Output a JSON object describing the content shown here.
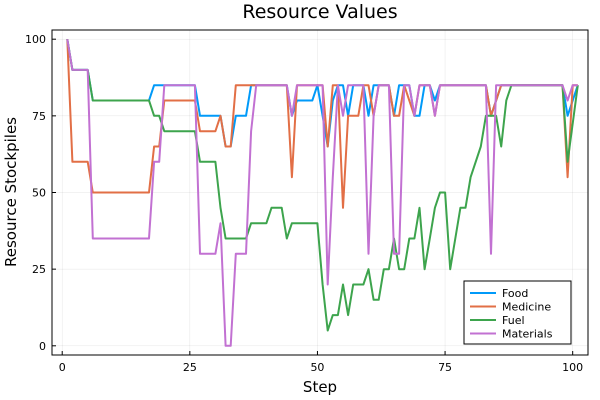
{
  "chart_data": {
    "type": "line",
    "title": "Resource Values",
    "xlabel": "Step",
    "ylabel": "Resource Stockpiles",
    "xlim": [
      -2,
      103
    ],
    "ylim": [
      -3,
      103
    ],
    "xticks": [
      0,
      25,
      50,
      75,
      100
    ],
    "yticks": [
      0,
      25,
      50,
      75,
      100
    ],
    "grid": true,
    "legend_position": "bottom-right",
    "series": [
      {
        "name": "Food",
        "color": "#009af9",
        "points": [
          [
            1,
            100
          ],
          [
            2,
            90
          ],
          [
            5,
            90
          ],
          [
            6,
            80
          ],
          [
            17,
            80
          ],
          [
            18,
            85
          ],
          [
            26,
            85
          ],
          [
            27,
            75
          ],
          [
            31,
            75
          ],
          [
            32,
            65
          ],
          [
            33,
            65
          ],
          [
            34,
            75
          ],
          [
            36,
            75
          ],
          [
            37,
            85
          ],
          [
            44,
            85
          ],
          [
            45,
            75
          ],
          [
            46,
            80
          ],
          [
            49,
            80
          ],
          [
            50,
            85
          ],
          [
            51,
            75
          ],
          [
            52,
            65
          ],
          [
            53,
            80
          ],
          [
            54,
            85
          ],
          [
            55,
            85
          ],
          [
            56,
            75
          ],
          [
            57,
            85
          ],
          [
            59,
            85
          ],
          [
            60,
            75
          ],
          [
            61,
            85
          ],
          [
            64,
            85
          ],
          [
            65,
            75
          ],
          [
            66,
            85
          ],
          [
            68,
            85
          ],
          [
            69,
            75
          ],
          [
            70,
            75
          ],
          [
            71,
            85
          ],
          [
            72,
            85
          ],
          [
            73,
            80
          ],
          [
            74,
            85
          ],
          [
            75,
            85
          ],
          [
            76,
            85
          ],
          [
            83,
            85
          ],
          [
            84,
            75
          ],
          [
            85,
            80
          ],
          [
            86,
            85
          ],
          [
            98,
            85
          ],
          [
            99,
            75
          ],
          [
            101,
            85
          ]
        ]
      },
      {
        "name": "Medicine",
        "color": "#e26f46",
        "points": [
          [
            1,
            100
          ],
          [
            2,
            60
          ],
          [
            5,
            60
          ],
          [
            6,
            50
          ],
          [
            17,
            50
          ],
          [
            18,
            65
          ],
          [
            19,
            65
          ],
          [
            20,
            80
          ],
          [
            26,
            80
          ],
          [
            27,
            70
          ],
          [
            30,
            70
          ],
          [
            31,
            75
          ],
          [
            32,
            65
          ],
          [
            33,
            65
          ],
          [
            34,
            85
          ],
          [
            44,
            85
          ],
          [
            45,
            55
          ],
          [
            46,
            85
          ],
          [
            51,
            85
          ],
          [
            52,
            65
          ],
          [
            53,
            85
          ],
          [
            54,
            85
          ],
          [
            55,
            45
          ],
          [
            56,
            75
          ],
          [
            58,
            75
          ],
          [
            59,
            85
          ],
          [
            60,
            85
          ],
          [
            61,
            75
          ],
          [
            62,
            85
          ],
          [
            64,
            85
          ],
          [
            65,
            75
          ],
          [
            66,
            75
          ],
          [
            67,
            85
          ],
          [
            68,
            80
          ],
          [
            69,
            75
          ],
          [
            70,
            85
          ],
          [
            72,
            85
          ],
          [
            73,
            75
          ],
          [
            74,
            85
          ],
          [
            83,
            85
          ],
          [
            84,
            75
          ],
          [
            85,
            80
          ],
          [
            86,
            85
          ],
          [
            98,
            85
          ],
          [
            99,
            55
          ],
          [
            100,
            85
          ],
          [
            101,
            85
          ]
        ]
      },
      {
        "name": "Fuel",
        "color": "#3da44d",
        "points": [
          [
            1,
            100
          ],
          [
            2,
            90
          ],
          [
            5,
            90
          ],
          [
            6,
            80
          ],
          [
            17,
            80
          ],
          [
            18,
            75
          ],
          [
            19,
            75
          ],
          [
            20,
            70
          ],
          [
            26,
            70
          ],
          [
            27,
            60
          ],
          [
            30,
            60
          ],
          [
            31,
            45
          ],
          [
            32,
            35
          ],
          [
            36,
            35
          ],
          [
            37,
            40
          ],
          [
            40,
            40
          ],
          [
            41,
            45
          ],
          [
            43,
            45
          ],
          [
            44,
            35
          ],
          [
            45,
            40
          ],
          [
            50,
            40
          ],
          [
            51,
            20
          ],
          [
            52,
            5
          ],
          [
            53,
            10
          ],
          [
            54,
            10
          ],
          [
            55,
            20
          ],
          [
            56,
            10
          ],
          [
            57,
            20
          ],
          [
            59,
            20
          ],
          [
            60,
            25
          ],
          [
            61,
            15
          ],
          [
            62,
            15
          ],
          [
            63,
            25
          ],
          [
            64,
            25
          ],
          [
            65,
            35
          ],
          [
            66,
            25
          ],
          [
            67,
            25
          ],
          [
            68,
            35
          ],
          [
            69,
            35
          ],
          [
            70,
            45
          ],
          [
            71,
            25
          ],
          [
            72,
            35
          ],
          [
            73,
            45
          ],
          [
            74,
            50
          ],
          [
            75,
            50
          ],
          [
            76,
            25
          ],
          [
            77,
            35
          ],
          [
            78,
            45
          ],
          [
            79,
            45
          ],
          [
            80,
            55
          ],
          [
            82,
            65
          ],
          [
            83,
            75
          ],
          [
            85,
            75
          ],
          [
            86,
            65
          ],
          [
            87,
            80
          ],
          [
            88,
            85
          ],
          [
            98,
            85
          ],
          [
            99,
            60
          ],
          [
            101,
            85
          ]
        ]
      },
      {
        "name": "Materials",
        "color": "#c271d2",
        "points": [
          [
            1,
            100
          ],
          [
            2,
            90
          ],
          [
            5,
            90
          ],
          [
            6,
            35
          ],
          [
            17,
            35
          ],
          [
            18,
            60
          ],
          [
            19,
            60
          ],
          [
            20,
            85
          ],
          [
            26,
            85
          ],
          [
            27,
            30
          ],
          [
            30,
            30
          ],
          [
            31,
            40
          ],
          [
            32,
            0
          ],
          [
            33,
            0
          ],
          [
            34,
            30
          ],
          [
            36,
            30
          ],
          [
            37,
            70
          ],
          [
            38,
            85
          ],
          [
            44,
            85
          ],
          [
            45,
            75
          ],
          [
            46,
            85
          ],
          [
            51,
            85
          ],
          [
            52,
            20
          ],
          [
            53,
            55
          ],
          [
            54,
            85
          ],
          [
            55,
            75
          ],
          [
            56,
            85
          ],
          [
            59,
            85
          ],
          [
            60,
            30
          ],
          [
            61,
            75
          ],
          [
            62,
            85
          ],
          [
            64,
            85
          ],
          [
            65,
            30
          ],
          [
            66,
            30
          ],
          [
            67,
            85
          ],
          [
            68,
            85
          ],
          [
            69,
            75
          ],
          [
            70,
            85
          ],
          [
            72,
            85
          ],
          [
            73,
            75
          ],
          [
            74,
            85
          ],
          [
            83,
            85
          ],
          [
            84,
            30
          ],
          [
            85,
            85
          ],
          [
            98,
            85
          ],
          [
            99,
            80
          ],
          [
            100,
            85
          ],
          [
            101,
            85
          ]
        ]
      }
    ]
  }
}
